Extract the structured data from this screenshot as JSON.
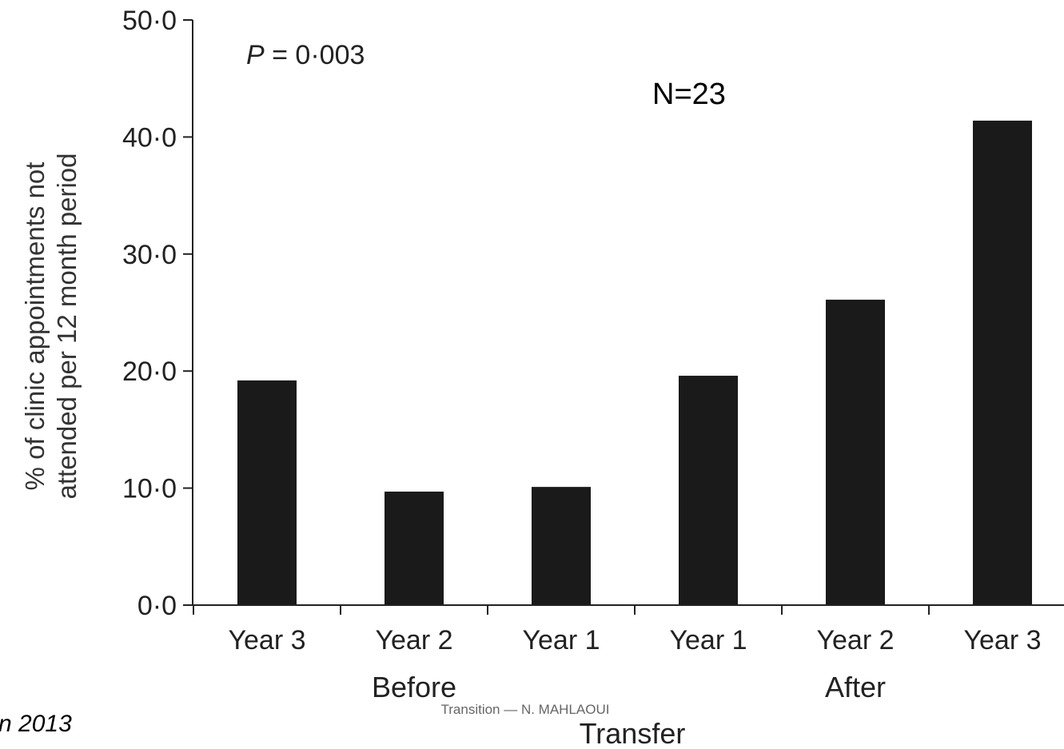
{
  "chart_data": {
    "type": "bar",
    "categories": [
      "Year 3",
      "Year 2",
      "Year 1",
      "Year 1",
      "Year 2",
      "Year 3"
    ],
    "values": [
      19.2,
      9.7,
      10.1,
      19.6,
      26.1,
      41.4
    ],
    "groups": [
      {
        "label": "Before",
        "categories": [
          0,
          1,
          2
        ]
      },
      {
        "label": "After",
        "categories": [
          3,
          4,
          5
        ]
      }
    ],
    "title": "",
    "xlabel": "Transfer",
    "ylabel": "% of clinic appointments not attended per 12 month period",
    "ylabel_lines": [
      "% of clinic appointments not",
      "attended per 12 month period"
    ],
    "ylim": [
      0,
      50
    ],
    "yticks": [
      "0·0",
      "10·0",
      "20·0",
      "30·0",
      "40·0",
      "50·0"
    ],
    "annotations": {
      "p_symbol": "P",
      "p_value": " = 0·003",
      "n": "N=23"
    },
    "bar_color": "#1a1a1a",
    "grid": false
  },
  "footer": {
    "text": "Transition — N. MAHLAOUI",
    "citation": "n 2013"
  }
}
